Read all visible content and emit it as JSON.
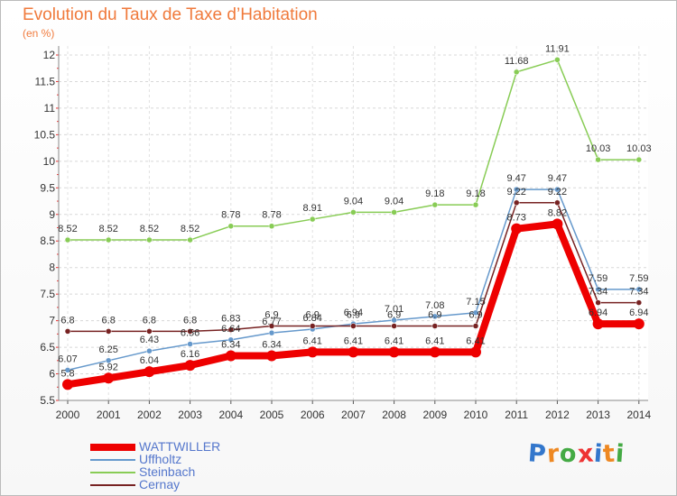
{
  "chart_data": {
    "type": "line",
    "title": "Evolution du Taux de Taxe d’Habitation",
    "ylabel": "(en %)",
    "xlabel": "",
    "ylim": [
      5.5,
      12
    ],
    "yticks": [
      "5.5",
      "6",
      "6.5",
      "7",
      "7.5",
      "8",
      "8.5",
      "9",
      "9.5",
      "10",
      "10.5",
      "11",
      "11.5",
      "12"
    ],
    "x": [
      "2000",
      "2001",
      "2002",
      "2003",
      "2004",
      "2005",
      "2006",
      "2007",
      "2008",
      "2009",
      "2010",
      "2011",
      "2012",
      "2013",
      "2014"
    ],
    "series": [
      {
        "name": "Steinbach",
        "color": "#88cc55",
        "values": [
          8.52,
          8.52,
          8.52,
          8.52,
          8.78,
          8.78,
          8.91,
          9.04,
          9.04,
          9.18,
          9.18,
          11.68,
          11.91,
          10.03,
          10.03
        ],
        "labels": [
          "8.52",
          "8.52",
          "8.52",
          "8.52",
          "8.78",
          "8.78",
          "8.91",
          "9.04",
          "9.04",
          "9.18",
          "9.18",
          "11.68",
          "11.91",
          "10.03",
          "10.03"
        ]
      },
      {
        "name": "Uffholtz",
        "color": "#6699cc",
        "values": [
          6.07,
          6.25,
          6.43,
          6.56,
          6.64,
          6.77,
          6.84,
          6.94,
          7.01,
          7.08,
          7.15,
          9.47,
          9.47,
          7.59,
          7.59
        ],
        "labels": [
          "6.07",
          "6.25",
          "6.43",
          "6.56",
          "6.64",
          "6.77",
          "6.84",
          "6.94",
          "7.01",
          "7.08",
          "7.15",
          "9.47",
          "9.47",
          "7.59",
          "7.59"
        ]
      },
      {
        "name": "Cernay",
        "color": "#772222",
        "values": [
          6.8,
          6.8,
          6.8,
          6.8,
          6.83,
          6.9,
          6.9,
          6.9,
          6.9,
          6.9,
          6.9,
          9.22,
          9.22,
          7.34,
          7.34
        ],
        "labels": [
          "6.8",
          "6.8",
          "6.8",
          "6.8",
          "6.83",
          "6.9",
          "6.9",
          "6.9",
          "6.9",
          "6.9",
          "6.9",
          "9.22",
          "9.22",
          "7.34",
          "7.34"
        ]
      },
      {
        "name": "WATTWILLER",
        "color": "#ee0000",
        "values": [
          5.8,
          5.92,
          6.04,
          6.16,
          6.34,
          6.34,
          6.41,
          6.41,
          6.41,
          6.41,
          6.41,
          8.73,
          8.82,
          6.94,
          6.94
        ],
        "labels": [
          "5.8",
          "5.92",
          "6.04",
          "6.16",
          "6.34",
          "6.34",
          "6.41",
          "6.41",
          "6.41",
          "6.41",
          "6.41",
          "8.73",
          "8.82",
          "6.94",
          "6.94"
        ]
      }
    ],
    "legend": [
      {
        "name": "WATTWILLER",
        "color": "#ee0000",
        "thickness": "thick"
      },
      {
        "name": "Uffholtz",
        "color": "#6699cc",
        "thickness": "thin"
      },
      {
        "name": "Steinbach",
        "color": "#88cc55",
        "thickness": "thin"
      },
      {
        "name": "Cernay",
        "color": "#772222",
        "thickness": "thin"
      }
    ]
  },
  "logo": {
    "text": "Proxiti",
    "colors": [
      "#3377cc",
      "#ee8822",
      "#44aa44",
      "#ee3333",
      "#3377cc",
      "#ee8822",
      "#44aa44"
    ]
  }
}
